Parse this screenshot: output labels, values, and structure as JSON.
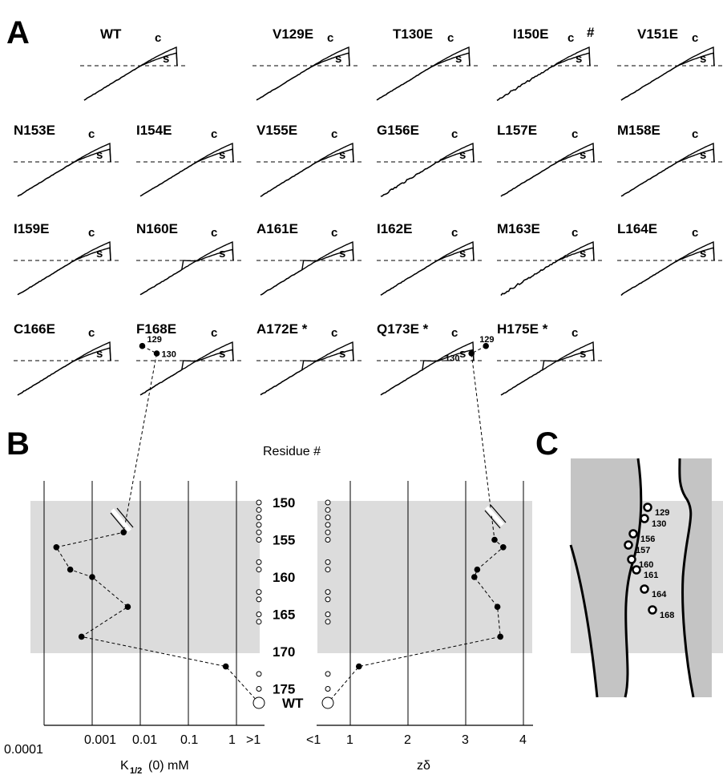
{
  "panels": {
    "a": "A",
    "b": "B",
    "c": "C"
  },
  "traces": [
    {
      "label": "WT",
      "extra": ""
    },
    {
      "label": "V129E",
      "extra": ""
    },
    {
      "label": "T130E",
      "extra": ""
    },
    {
      "label": "I150E",
      "extra": "#"
    },
    {
      "label": "V151E",
      "extra": ""
    },
    {
      "label": "N153E",
      "extra": ""
    },
    {
      "label": "I154E",
      "extra": ""
    },
    {
      "label": "V155E",
      "extra": ""
    },
    {
      "label": "G156E",
      "extra": ""
    },
    {
      "label": "L157E",
      "extra": ""
    },
    {
      "label": "M158E",
      "extra": ""
    },
    {
      "label": "I159E",
      "extra": ""
    },
    {
      "label": "N160E",
      "extra": ""
    },
    {
      "label": "A161E",
      "extra": ""
    },
    {
      "label": "I162E",
      "extra": ""
    },
    {
      "label": "M163E",
      "extra": ""
    },
    {
      "label": "L164E",
      "extra": ""
    },
    {
      "label": "C166E",
      "extra": ""
    },
    {
      "label": "F168E",
      "extra": ""
    },
    {
      "label": "A172E *",
      "extra": ""
    },
    {
      "label": "Q173E *",
      "extra": ""
    },
    {
      "label": "H175E *",
      "extra": ""
    }
  ],
  "trace_letters": {
    "c": "c",
    "s": "s"
  },
  "chart_data": [
    {
      "type": "scatter",
      "panel": "B-left",
      "xlabel_main": "K",
      "xlabel_sub": "1/2",
      "xlabel_rest": "(0)  mM",
      "xscale": "log",
      "xticks": [
        "0.0001",
        "0.001",
        "0.01",
        "0.1",
        "1",
        ">1"
      ],
      "points": [
        {
          "residue": 129,
          "x": 0.011
        },
        {
          "residue": 130,
          "x": 0.022
        },
        {
          "residue": 154,
          "x": 0.0045
        },
        {
          "residue": 156,
          "x": 0.00018
        },
        {
          "residue": 159,
          "x": 0.00035
        },
        {
          "residue": 160,
          "x": 0.001
        },
        {
          "residue": 164,
          "x": 0.0055
        },
        {
          "residue": 168,
          "x": 0.0006
        },
        {
          "residue": 172,
          "x": 0.6
        }
      ],
      "point_labels": [
        "129",
        "130"
      ],
      "gt1_residues": [
        150,
        151,
        152,
        153,
        154,
        155,
        158,
        159,
        162,
        163,
        165,
        166,
        173,
        175,
        "WT"
      ]
    },
    {
      "type": "scatter",
      "panel": "B-right",
      "xlabel": "zδ",
      "xticks": [
        "<1",
        "1",
        "2",
        "3",
        "4"
      ],
      "points": [
        {
          "residue": 129,
          "x": 3.35
        },
        {
          "residue": 130,
          "x": 3.1
        },
        {
          "residue": 155,
          "x": 3.5
        },
        {
          "residue": 156,
          "x": 3.65
        },
        {
          "residue": 159,
          "x": 3.2
        },
        {
          "residue": 160,
          "x": 3.15
        },
        {
          "residue": 164,
          "x": 3.55
        },
        {
          "residue": 168,
          "x": 3.6
        },
        {
          "residue": 172,
          "x": 1.15
        }
      ],
      "point_labels": [
        "129",
        "130"
      ],
      "lt1_residues": [
        150,
        151,
        152,
        153,
        154,
        155,
        158,
        159,
        162,
        163,
        165,
        166,
        173,
        175,
        "WT"
      ]
    }
  ],
  "residue_axis": {
    "title": "Residue #",
    "ticks": [
      "150",
      "155",
      "160",
      "165",
      "170",
      "175"
    ],
    "wt": "WT"
  },
  "panel_c": {
    "labels": [
      "129",
      "130",
      "156",
      "157",
      "160",
      "161",
      "164",
      "168"
    ]
  },
  "colors": {
    "shade": "#dcdcdc",
    "pore": "#c4c4c4"
  }
}
